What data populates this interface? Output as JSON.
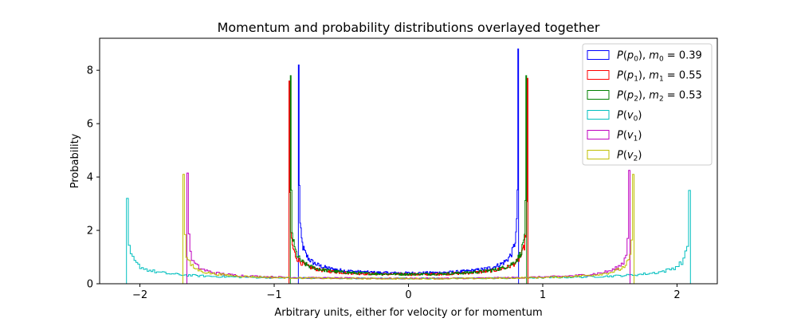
{
  "chart_data": {
    "type": "step-histogram",
    "title": "Momentum and probability distributions overlayed together",
    "xlabel": "Arbitrary units, either for velocity or for momentum",
    "ylabel": "Probability",
    "xlim": [
      -2.3,
      2.3
    ],
    "ylim": [
      0,
      9.2
    ],
    "xticks": [
      -2,
      -1,
      0,
      1,
      2
    ],
    "yticks": [
      0,
      2,
      4,
      6,
      8
    ],
    "grid": false,
    "legend_position": "top-right",
    "series": [
      {
        "name": "P(p0)",
        "legend": {
          "main": "P",
          "arg": "p",
          "argsub": "0",
          "extra": "m",
          "extrasub": "0",
          "value": "0.39"
        },
        "color": "#0000ff",
        "edge": 0.82,
        "peak_left": 8.2,
        "peak_right": 8.8,
        "floor": 0.4,
        "profile": "arcsine"
      },
      {
        "name": "P(p1)",
        "legend": {
          "main": "P",
          "arg": "p",
          "argsub": "1",
          "extra": "m",
          "extrasub": "1",
          "value": "0.55"
        },
        "color": "#ff0000",
        "edge": 0.89,
        "peak_left": 7.6,
        "peak_right": 7.7,
        "floor": 0.35,
        "profile": "arcsine"
      },
      {
        "name": "P(p2)",
        "legend": {
          "main": "P",
          "arg": "p",
          "argsub": "2",
          "extra": "m",
          "extrasub": "2",
          "value": "0.53"
        },
        "color": "#008000",
        "edge": 0.88,
        "peak_left": 7.8,
        "peak_right": 7.8,
        "floor": 0.36,
        "profile": "arcsine"
      },
      {
        "name": "P(v0)",
        "legend": {
          "main": "P",
          "arg": "v",
          "argsub": "0"
        },
        "color": "#00bfbf",
        "edge": 2.1,
        "peak_left": 3.2,
        "peak_right": 3.5,
        "floor": 0.2,
        "profile": "arcsine"
      },
      {
        "name": "P(v1)",
        "legend": {
          "main": "P",
          "arg": "v",
          "argsub": "1"
        },
        "color": "#bf00bf",
        "edge": 1.65,
        "peak_left": 4.15,
        "peak_right": 4.25,
        "floor": 0.2,
        "profile": "arcsine"
      },
      {
        "name": "P(v2)",
        "legend": {
          "main": "P",
          "arg": "v",
          "argsub": "2"
        },
        "color": "#bfbf00",
        "edge": 1.68,
        "peak_left": 4.1,
        "peak_right": 4.1,
        "floor": 0.19,
        "profile": "arcsine"
      }
    ]
  }
}
